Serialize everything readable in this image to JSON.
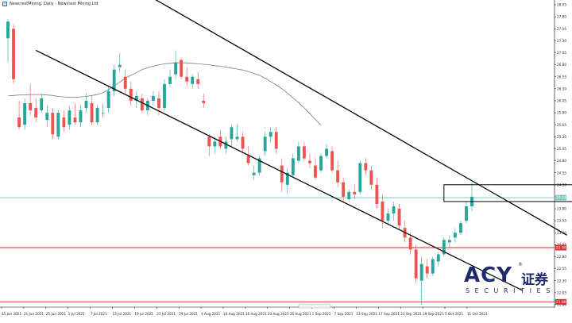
{
  "header": {
    "title": "NewcrestMining, Daily - Newcrest Mining Ltd"
  },
  "brand": {
    "logo_text": "ACY",
    "logo_cn": "证券",
    "logo_sub": "SECURITIES",
    "reg_mark": "®",
    "color": "#1d2b6b"
  },
  "chart_data": {
    "type": "candlestick",
    "grid": false,
    "ylim": [
      21.75,
      28.05
    ],
    "y_ticks": [
      "28.05",
      "27.80",
      "27.55",
      "27.30",
      "27.05",
      "26.80",
      "26.55",
      "26.30",
      "26.05",
      "25.80",
      "25.55",
      "25.30",
      "25.05",
      "24.80",
      "24.55",
      "24.30",
      "24.05",
      "23.80",
      "23.55",
      "23.30",
      "23.05",
      "22.80",
      "22.55",
      "22.30",
      "22.05",
      "21.80"
    ],
    "x_ticks": [
      "15 Jun 2021",
      "21 Jun 2021",
      "25 Jun 2021",
      "1 Jul 2021",
      "7 Jul 2021",
      "13 Jul 2021",
      "19 Jul 2021",
      "23 Jul 2021",
      "29 Jul 2021",
      "4 Aug 2021",
      "10 Aug 2021",
      "16 Aug 2021",
      "20 Aug 2021",
      "26 Aug 2021",
      "1 Sep 2021",
      "7 Sep 2021",
      "13 Sep 2021",
      "17 Sep 2021",
      "23 Sep 2021",
      "29 Sep 2021",
      "5 Oct 2021",
      "11 Oct 2021"
    ],
    "price_labels": [
      {
        "value": 24.03,
        "text": "24.03",
        "color": "#7fc6c1"
      },
      {
        "value": 22.99,
        "text": "22.99",
        "color": "#d62b2b"
      },
      {
        "value": 21.86,
        "text": "21.86",
        "color": "#d62b2b"
      }
    ],
    "up_color": "#26a69a",
    "down_color": "#ef5350",
    "candles": [
      [
        27.35,
        27.75,
        26.85,
        27.7
      ],
      [
        27.55,
        27.65,
        26.4,
        26.5
      ],
      [
        25.7,
        26.05,
        25.45,
        25.5
      ],
      [
        25.55,
        26.1,
        25.45,
        26.0
      ],
      [
        26.0,
        26.4,
        25.75,
        25.85
      ],
      [
        25.9,
        26.1,
        25.6,
        25.7
      ],
      [
        25.85,
        26.2,
        25.8,
        26.1
      ],
      [
        25.65,
        25.95,
        25.5,
        25.8
      ],
      [
        25.8,
        25.9,
        25.25,
        25.35
      ],
      [
        25.3,
        25.85,
        25.25,
        25.8
      ],
      [
        25.7,
        25.85,
        25.4,
        25.5
      ],
      [
        25.55,
        25.95,
        25.45,
        25.85
      ],
      [
        25.7,
        26.0,
        25.55,
        25.6
      ],
      [
        25.6,
        25.95,
        25.5,
        25.85
      ],
      [
        25.9,
        26.2,
        25.8,
        26.05
      ],
      [
        26.0,
        26.15,
        25.55,
        25.6
      ],
      [
        25.6,
        25.95,
        25.55,
        25.9
      ],
      [
        25.8,
        26.0,
        25.7,
        25.8
      ],
      [
        25.9,
        26.35,
        25.8,
        26.25
      ],
      [
        26.25,
        26.8,
        26.15,
        26.7
      ],
      [
        26.75,
        27.05,
        26.65,
        26.8
      ],
      [
        26.55,
        26.7,
        26.2,
        26.3
      ],
      [
        26.3,
        26.45,
        25.95,
        26.05
      ],
      [
        26.05,
        26.25,
        25.9,
        26.15
      ],
      [
        26.1,
        26.2,
        25.8,
        25.85
      ],
      [
        25.85,
        26.1,
        25.75,
        26.05
      ],
      [
        26.05,
        26.25,
        25.95,
        26.15
      ],
      [
        26.1,
        26.25,
        25.75,
        25.9
      ],
      [
        25.9,
        26.5,
        25.85,
        26.4
      ],
      [
        26.4,
        26.7,
        26.35,
        26.55
      ],
      [
        26.6,
        27.1,
        26.5,
        26.85
      ],
      [
        26.9,
        26.95,
        26.5,
        26.55
      ],
      [
        26.55,
        26.75,
        26.35,
        26.45
      ],
      [
        26.4,
        26.6,
        26.3,
        26.55
      ],
      [
        26.5,
        26.65,
        26.3,
        26.4
      ],
      [
        26.05,
        26.2,
        25.9,
        26.0
      ],
      [
        25.3,
        25.35,
        24.9,
        25.1
      ],
      [
        25.1,
        25.3,
        24.95,
        25.2
      ],
      [
        25.3,
        25.45,
        25.05,
        25.1
      ],
      [
        25.05,
        25.3,
        24.95,
        25.2
      ],
      [
        25.25,
        25.55,
        25.1,
        25.5
      ],
      [
        25.25,
        25.55,
        25.2,
        25.3
      ],
      [
        25.3,
        25.4,
        24.95,
        25.05
      ],
      [
        24.9,
        25.1,
        24.7,
        24.75
      ],
      [
        24.5,
        24.7,
        24.4,
        24.55
      ],
      [
        24.55,
        24.9,
        24.5,
        24.85
      ],
      [
        25.0,
        25.4,
        24.9,
        25.3
      ],
      [
        25.3,
        25.5,
        25.2,
        25.4
      ],
      [
        25.4,
        25.5,
        24.95,
        25.05
      ],
      [
        24.7,
        24.85,
        24.15,
        24.35
      ],
      [
        24.3,
        24.65,
        24.1,
        24.55
      ],
      [
        24.5,
        24.95,
        24.45,
        24.85
      ],
      [
        24.8,
        25.2,
        24.75,
        25.1
      ],
      [
        25.1,
        25.2,
        24.8,
        24.85
      ],
      [
        24.8,
        24.95,
        24.65,
        24.75
      ],
      [
        24.7,
        24.85,
        24.4,
        24.45
      ],
      [
        24.6,
        24.95,
        24.55,
        24.9
      ],
      [
        24.9,
        25.15,
        24.85,
        25.05
      ],
      [
        25.0,
        25.1,
        24.55,
        24.6
      ],
      [
        24.6,
        24.8,
        24.25,
        24.35
      ],
      [
        24.35,
        24.45,
        23.95,
        24.05
      ],
      [
        24.0,
        24.2,
        23.95,
        24.15
      ],
      [
        24.15,
        24.3,
        24.0,
        24.1
      ],
      [
        24.15,
        24.8,
        24.1,
        24.75
      ],
      [
        24.75,
        24.85,
        24.5,
        24.6
      ],
      [
        24.6,
        24.7,
        24.2,
        24.3
      ],
      [
        24.3,
        24.45,
        23.8,
        23.9
      ],
      [
        23.95,
        24.1,
        23.4,
        23.55
      ],
      [
        23.55,
        23.8,
        23.45,
        23.7
      ],
      [
        23.7,
        23.95,
        23.55,
        23.85
      ],
      [
        23.8,
        23.9,
        23.35,
        23.45
      ],
      [
        23.4,
        23.55,
        23.1,
        23.2
      ],
      [
        23.2,
        23.3,
        22.85,
        22.95
      ],
      [
        22.95,
        23.05,
        22.25,
        22.35
      ],
      [
        22.3,
        22.8,
        21.8,
        22.65
      ],
      [
        22.6,
        22.75,
        22.35,
        22.45
      ],
      [
        22.45,
        22.8,
        22.4,
        22.75
      ],
      [
        22.7,
        22.9,
        22.6,
        22.85
      ],
      [
        22.85,
        23.2,
        22.8,
        23.15
      ],
      [
        23.1,
        23.25,
        23.0,
        23.15
      ],
      [
        23.2,
        23.4,
        23.1,
        23.3
      ],
      [
        23.3,
        23.55,
        23.25,
        23.5
      ],
      [
        23.55,
        23.95,
        23.5,
        23.85
      ],
      [
        23.85,
        24.35,
        23.75,
        24.05
      ]
    ],
    "moving_average": [
      [
        26.15,
        26.16,
        26.17,
        26.17,
        26.18,
        26.18,
        26.18,
        26.17,
        26.16,
        26.14,
        26.13,
        26.12,
        26.12,
        26.13,
        26.14,
        26.16,
        26.18,
        26.22,
        26.28,
        26.36,
        26.44,
        26.52,
        26.58,
        26.64,
        26.7,
        26.74,
        26.77,
        26.8,
        26.82,
        26.83,
        26.84,
        26.84,
        26.84,
        26.83,
        26.82,
        26.81,
        26.8,
        26.78,
        26.77,
        26.75,
        26.73,
        26.71,
        26.69,
        26.66,
        26.62,
        26.58,
        26.52,
        26.45,
        26.38,
        26.3,
        26.21,
        26.11,
        26.01,
        25.9,
        25.78,
        25.66,
        25.54
      ]
    ],
    "annotations": {
      "period": "Daily",
      "channel": "descending parallel channel",
      "breakout_box": "rectangle",
      "arrow": "up"
    }
  }
}
